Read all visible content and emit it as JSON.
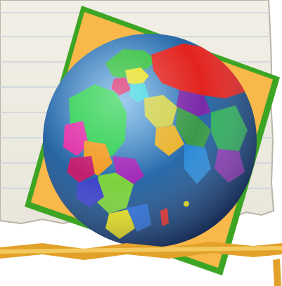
{
  "icon": {
    "name": "world-globe-icon",
    "colors": {
      "paper": "#f7f3ea",
      "paper_lines": "#c9d3dc",
      "card": "#f9b84a",
      "card_border": "#57c23a",
      "ocean": "#2c6fb0",
      "ribbon": "#e2a12a"
    }
  }
}
